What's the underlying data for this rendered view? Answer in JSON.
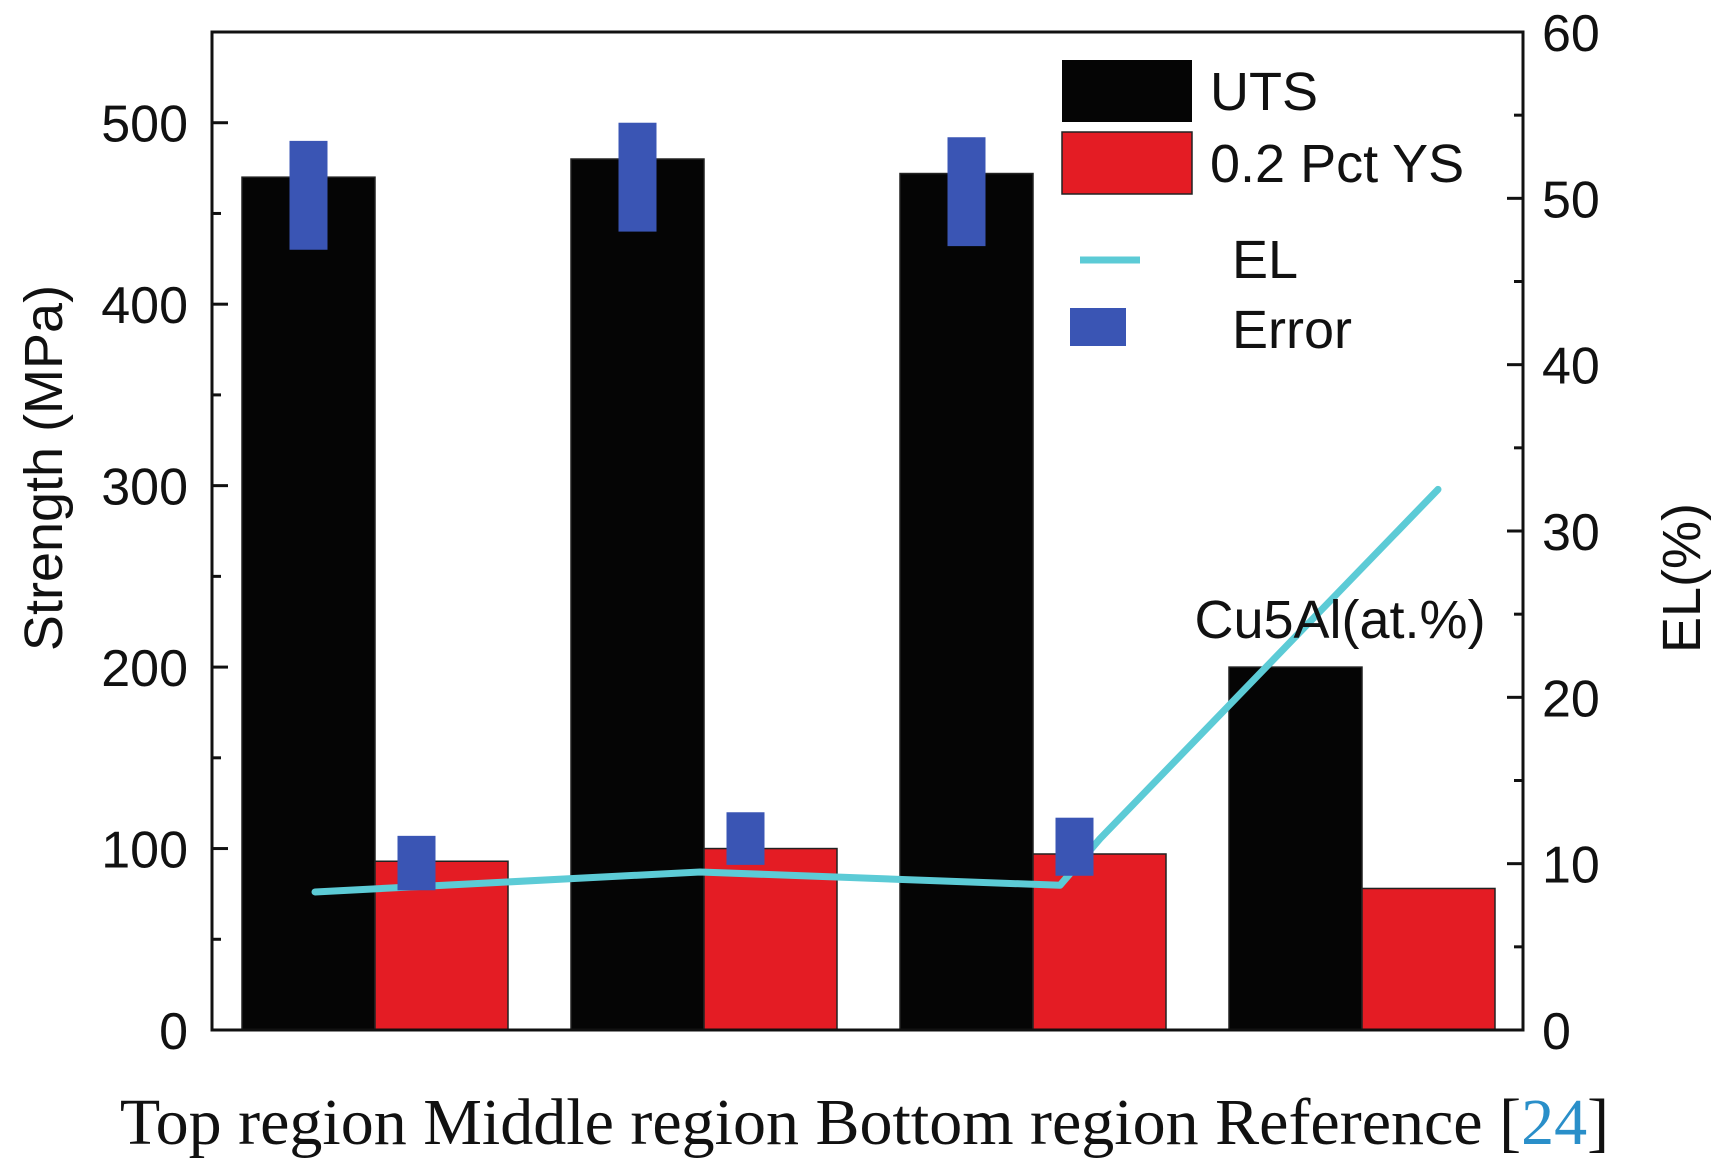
{
  "chart_data": {
    "type": "bar",
    "categories": [
      "Top region",
      "Middle region",
      "Bottom region",
      "Reference [24]"
    ],
    "series": [
      {
        "name": "UTS",
        "values": [
          470,
          480,
          472,
          200
        ],
        "color": "#050505"
      },
      {
        "name": "0.2 Pct YS",
        "values": [
          93,
          100,
          97,
          78
        ],
        "color": "#e41c24"
      }
    ],
    "el_series": {
      "name": "EL",
      "values": [
        8.3,
        9.5,
        8.7,
        32.5
      ],
      "color": "#5ccbd6"
    },
    "error_legend": {
      "name": "Error",
      "color": "#3a55b4"
    },
    "errors_uts": [
      {
        "low": 430,
        "high": 490
      },
      {
        "low": 440,
        "high": 500
      },
      {
        "low": 432,
        "high": 492
      }
    ],
    "errors_ys": [
      {
        "low": 77,
        "high": 107
      },
      {
        "low": 91,
        "high": 120
      },
      {
        "low": 85,
        "high": 117
      }
    ],
    "annotation": "Cu5Al(at.%)",
    "ylabel": "Strength (MPa)",
    "y2label": "EL(%)",
    "ylim": [
      0,
      550
    ],
    "y2lim": [
      0,
      60
    ],
    "yticks": [
      "0",
      "100",
      "200",
      "300",
      "400",
      "500"
    ],
    "y2ticks": [
      "0",
      "10",
      "20",
      "30",
      "40",
      "50",
      "60"
    ],
    "caption_prefix": "Top region Middle region Bottom region Reference [",
    "caption_ref": "24",
    "caption_suffix": "]",
    "legend_position": "top-right",
    "grid": false
  }
}
